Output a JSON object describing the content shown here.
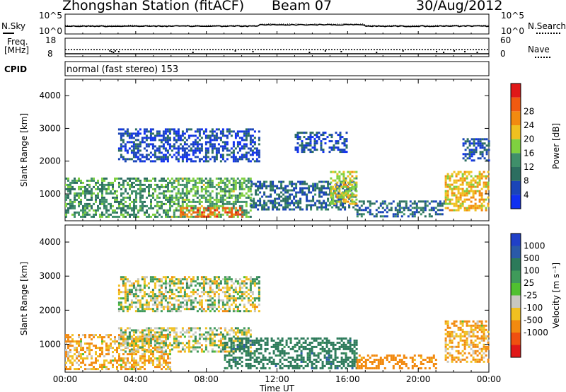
{
  "header": {
    "station": "Zhongshan Station (fitACF)",
    "beam": "Beam 07",
    "date": "30/Aug/2012"
  },
  "noise_panel": {
    "left_label": "N.Sky",
    "right_label": "N.Search",
    "left_ticks": [
      "10^5",
      "10^0"
    ],
    "right_ticks": [
      "10^5",
      "10^0"
    ]
  },
  "freq_panel": {
    "left_label_line1": "Freq.",
    "left_label_line2": "[MHz]",
    "right_label": "Nave",
    "left_ticks": [
      "18",
      "8"
    ],
    "right_ticks": [
      "60",
      "0"
    ]
  },
  "cpid": {
    "label": "CPID",
    "mode": "normal (fast stereo) 153"
  },
  "chart_data": [
    {
      "type": "heatmap",
      "name": "power",
      "ylabel": "Slant Range [km]",
      "ylim": [
        180,
        4500
      ],
      "yticks": [
        "1000",
        "2000",
        "3000",
        "4000"
      ],
      "colorbar_label": "Power [dB]",
      "colorbar_ticks": [
        "4",
        "8",
        "12",
        "16",
        "20",
        "24",
        "28"
      ],
      "colorbar_colors": [
        "#1030f0",
        "#1a45b8",
        "#2c6e60",
        "#3f8f6a",
        "#7fd040",
        "#f0c020",
        "#f28a10",
        "#f05a10",
        "#e01818"
      ],
      "echo_regions": [
        {
          "t0": 0.0,
          "t1": 6.0,
          "r0": 300,
          "r1": 1500,
          "level": 12
        },
        {
          "t0": 6.0,
          "t1": 10.5,
          "r0": 300,
          "r1": 1500,
          "level": 14
        },
        {
          "t0": 6.5,
          "t1": 10.0,
          "r0": 300,
          "r1": 600,
          "level": 26
        },
        {
          "t0": 10.5,
          "t1": 16.5,
          "r0": 500,
          "r1": 1400,
          "level": 8
        },
        {
          "t0": 15.0,
          "t1": 16.5,
          "r0": 700,
          "r1": 1700,
          "level": 18
        },
        {
          "t0": 3.0,
          "t1": 11.0,
          "r0": 2000,
          "r1": 3000,
          "level": 5
        },
        {
          "t0": 13.0,
          "t1": 16.0,
          "r0": 2300,
          "r1": 2900,
          "level": 6
        },
        {
          "t0": 16.5,
          "t1": 21.5,
          "r0": 300,
          "r1": 800,
          "level": 8
        },
        {
          "t0": 21.5,
          "t1": 24.0,
          "r0": 500,
          "r1": 1700,
          "level": 20
        },
        {
          "t0": 22.5,
          "t1": 24.0,
          "r0": 2000,
          "r1": 2700,
          "level": 6
        }
      ]
    },
    {
      "type": "heatmap",
      "name": "velocity",
      "ylabel": "Slant Range [km]",
      "xlabel": "Time UT",
      "ylim": [
        180,
        4500
      ],
      "yticks": [
        "1000",
        "2000",
        "3000",
        "4000"
      ],
      "xticks": [
        "00:00",
        "04:00",
        "08:00",
        "12:00",
        "16:00",
        "20:00",
        "00:00"
      ],
      "colorbar_label": "Velocity [m s⁻¹]",
      "colorbar_ticks": [
        "1000",
        "500",
        "100",
        "25",
        "-25",
        "-100",
        "-500",
        "-1000"
      ],
      "colorbar_colors": [
        "#2040c8",
        "#2a5aa8",
        "#2c7a5a",
        "#3f9a5a",
        "#50c030",
        "#c8c8c0",
        "#f0c020",
        "#f28a10",
        "#f05010",
        "#e01818"
      ],
      "echo_regions": [
        {
          "t0": 0.0,
          "t1": 6.0,
          "r0": 300,
          "r1": 1300,
          "level": -100
        },
        {
          "t0": 3.0,
          "t1": 10.5,
          "r0": 800,
          "r1": 1500,
          "level": 0
        },
        {
          "t0": 9.0,
          "t1": 16.5,
          "r0": 300,
          "r1": 1200,
          "level": 200
        },
        {
          "t0": 3.0,
          "t1": 11.0,
          "r0": 2000,
          "r1": 3000,
          "level": 0
        },
        {
          "t0": 16.5,
          "t1": 21.0,
          "r0": 300,
          "r1": 700,
          "level": -200
        },
        {
          "t0": 21.5,
          "t1": 24.0,
          "r0": 500,
          "r1": 1700,
          "level": -100
        }
      ]
    }
  ]
}
